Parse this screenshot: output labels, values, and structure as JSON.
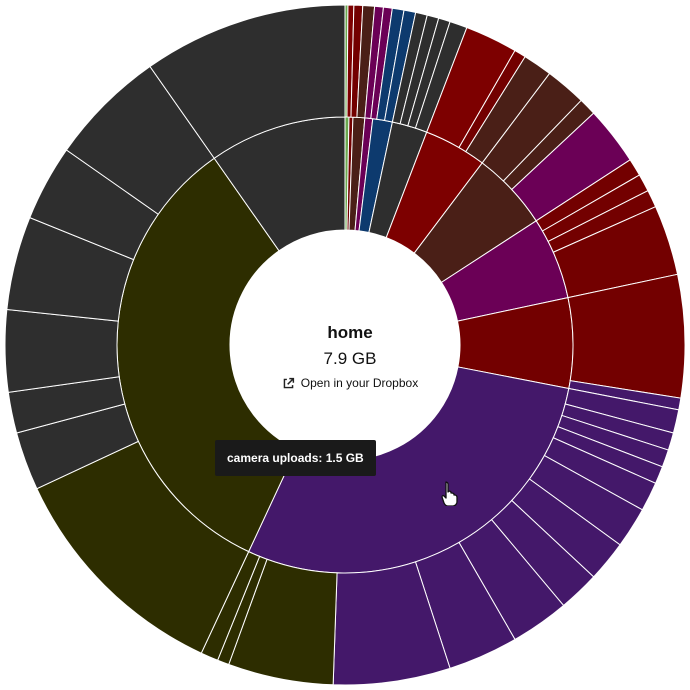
{
  "center": {
    "title": "home",
    "size": "7.9 GB",
    "open_link": "Open in your Dropbox",
    "open_icon": "external-link-icon"
  },
  "tooltip": {
    "text": "camera uploads: 1.5 GB"
  },
  "cursor": {
    "icon": "hand-pointer-icon"
  },
  "colors": {
    "gray": "#2e2e2e",
    "olive": "#2d2d00",
    "purple": "#44186a",
    "red": "#730000",
    "maroon": "#4a1f17",
    "magenta": "#6b0056",
    "blue": "#0d3a6e",
    "darkred": "#7d0000",
    "green": "#6aa84f"
  },
  "rings": {
    "inner": [
      {
        "a0": 0,
        "a1": 1,
        "c": "green"
      },
      {
        "a0": 1,
        "a1": 2,
        "c": "red"
      },
      {
        "a0": 2,
        "a1": 5,
        "c": "maroon"
      },
      {
        "a0": 5,
        "a1": 7,
        "c": "magenta"
      },
      {
        "a0": 7,
        "a1": 12,
        "c": "blue"
      },
      {
        "a0": 12,
        "a1": 21,
        "c": "gray"
      },
      {
        "a0": 21,
        "a1": 37,
        "c": "darkred"
      },
      {
        "a0": 37,
        "a1": 57,
        "c": "maroon"
      },
      {
        "a0": 57,
        "a1": 78,
        "c": "magenta"
      },
      {
        "a0": 78,
        "a1": 101,
        "c": "red"
      },
      {
        "a0": 101,
        "a1": 205,
        "c": "purple"
      },
      {
        "a0": 205,
        "a1": 325,
        "c": "olive"
      },
      {
        "a0": 325,
        "a1": 360,
        "c": "gray"
      }
    ],
    "outer": [
      {
        "a0": 0,
        "a1": 0.5,
        "c": "green"
      },
      {
        "a0": 0.5,
        "a1": 1.5,
        "c": "darkred"
      },
      {
        "a0": 1.5,
        "a1": 3,
        "c": "red"
      },
      {
        "a0": 3,
        "a1": 5,
        "c": "maroon"
      },
      {
        "a0": 5,
        "a1": 6.5,
        "c": "magenta"
      },
      {
        "a0": 6.5,
        "a1": 8,
        "c": "magenta"
      },
      {
        "a0": 8,
        "a1": 10,
        "c": "blue"
      },
      {
        "a0": 10,
        "a1": 12,
        "c": "blue"
      },
      {
        "a0": 12,
        "a1": 14,
        "c": "gray"
      },
      {
        "a0": 14,
        "a1": 16,
        "c": "gray"
      },
      {
        "a0": 16,
        "a1": 18,
        "c": "gray"
      },
      {
        "a0": 18,
        "a1": 21,
        "c": "gray"
      },
      {
        "a0": 21,
        "a1": 30,
        "c": "darkred"
      },
      {
        "a0": 30,
        "a1": 32,
        "c": "red"
      },
      {
        "a0": 32,
        "a1": 37,
        "c": "maroon"
      },
      {
        "a0": 37,
        "a1": 44,
        "c": "maroon"
      },
      {
        "a0": 44,
        "a1": 47,
        "c": "maroon"
      },
      {
        "a0": 47,
        "a1": 57,
        "c": "magenta"
      },
      {
        "a0": 57,
        "a1": 60,
        "c": "red"
      },
      {
        "a0": 60,
        "a1": 63,
        "c": "red"
      },
      {
        "a0": 63,
        "a1": 66,
        "c": "red"
      },
      {
        "a0": 66,
        "a1": 78,
        "c": "red"
      },
      {
        "a0": 78,
        "a1": 99,
        "c": "red"
      },
      {
        "a0": 99,
        "a1": 101,
        "c": "purple"
      },
      {
        "a0": 101,
        "a1": 105,
        "c": "purple"
      },
      {
        "a0": 105,
        "a1": 108,
        "c": "purple"
      },
      {
        "a0": 108,
        "a1": 111,
        "c": "purple"
      },
      {
        "a0": 111,
        "a1": 114,
        "c": "purple"
      },
      {
        "a0": 114,
        "a1": 119,
        "c": "purple"
      },
      {
        "a0": 119,
        "a1": 126,
        "c": "purple"
      },
      {
        "a0": 126,
        "a1": 133,
        "c": "purple"
      },
      {
        "a0": 133,
        "a1": 140,
        "c": "purple"
      },
      {
        "a0": 140,
        "a1": 150,
        "c": "purple"
      },
      {
        "a0": 150,
        "a1": 162,
        "c": "purple"
      },
      {
        "a0": 162,
        "a1": 182,
        "c": "purple"
      },
      {
        "a0": 182,
        "a1": 200,
        "c": "olive"
      },
      {
        "a0": 200,
        "a1": 202,
        "c": "olive"
      },
      {
        "a0": 202,
        "a1": 205,
        "c": "olive"
      },
      {
        "a0": 205,
        "a1": 245,
        "c": "olive"
      },
      {
        "a0": 245,
        "a1": 255,
        "c": "gray"
      },
      {
        "a0": 255,
        "a1": 262,
        "c": "gray"
      },
      {
        "a0": 262,
        "a1": 276,
        "c": "gray"
      },
      {
        "a0": 276,
        "a1": 292,
        "c": "gray"
      },
      {
        "a0": 292,
        "a1": 305,
        "c": "gray"
      },
      {
        "a0": 305,
        "a1": 325,
        "c": "gray"
      },
      {
        "a0": 325,
        "a1": 360,
        "c": "gray"
      }
    ]
  }
}
